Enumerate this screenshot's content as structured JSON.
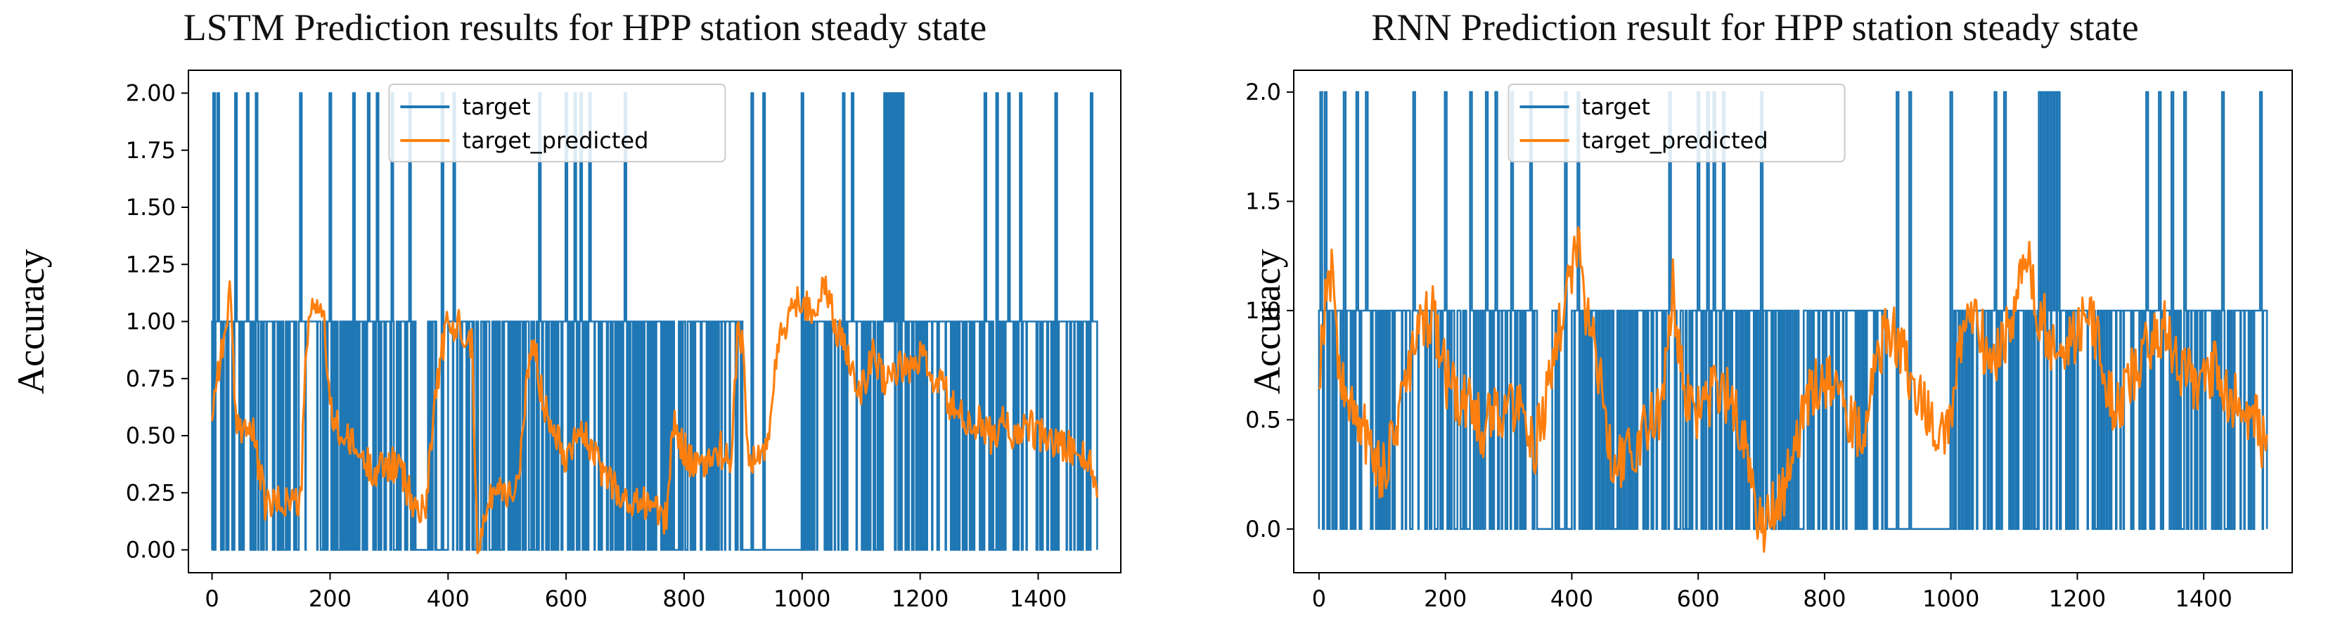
{
  "chart_data": [
    {
      "type": "line",
      "title": "LSTM Prediction results for HPP station steady state",
      "ylabel": "Accuracy",
      "xlabel": "",
      "xlim": [
        -40,
        1540
      ],
      "ylim": [
        -0.1,
        2.1
      ],
      "xticks": [
        0,
        200,
        400,
        600,
        800,
        1000,
        1200,
        1400
      ],
      "xtick_labels": [
        "0",
        "200",
        "400",
        "600",
        "800",
        "1000",
        "1200",
        "1400"
      ],
      "yticks": [
        0.0,
        0.25,
        0.5,
        0.75,
        1.0,
        1.25,
        1.5,
        1.75,
        2.0
      ],
      "ytick_labels": [
        "0.00",
        "0.25",
        "0.50",
        "0.75",
        "1.00",
        "1.25",
        "1.50",
        "1.75",
        "2.00"
      ],
      "grid": false,
      "legend": "top-center",
      "series": [
        {
          "name": "target",
          "color": "#1f77b4",
          "kind": "step",
          "segments": [
            {
              "x": [
                0,
                160
              ],
              "level": 1,
              "density": 0.75
            },
            {
              "x": [
                160,
                185
              ],
              "level": 1,
              "density": 0.85
            },
            {
              "x": [
                185,
                345
              ],
              "level": 1,
              "density": 0.6
            },
            {
              "x": [
                345,
                365
              ],
              "level": 0,
              "density": 0.3
            },
            {
              "x": [
                365,
                380
              ],
              "level": 1,
              "density": 0.7
            },
            {
              "x": [
                380,
                400
              ],
              "level": 0,
              "density": 0.2
            },
            {
              "x": [
                400,
                455
              ],
              "level": 1,
              "density": 0.65
            },
            {
              "x": [
                455,
                765
              ],
              "level": 1,
              "density": 0.6
            },
            {
              "x": [
                765,
                900
              ],
              "level": 1,
              "density": 0.7
            },
            {
              "x": [
                900,
                1005
              ],
              "level": 0,
              "density": 0.25
            },
            {
              "x": [
                1005,
                1500
              ],
              "level": 1,
              "density": 0.7
            }
          ],
          "spikes_to_2": [
            3,
            10,
            40,
            60,
            75,
            150,
            200,
            240,
            265,
            280,
            305,
            335,
            390,
            410,
            555,
            600,
            615,
            625,
            640,
            700,
            915,
            935,
            1000,
            1070,
            1085,
            1140,
            1145,
            1150,
            1155,
            1160,
            1165,
            1170,
            1310,
            1330,
            1350,
            1370,
            1430,
            1490
          ],
          "gaps_to_0": [
            145,
            185,
            215,
            350,
            385,
            445,
            900,
            1125,
            1135,
            1230
          ]
        },
        {
          "name": "target_predicted",
          "color": "#ff7f0e",
          "kind": "line",
          "x": [
            0,
            10,
            20,
            30,
            40,
            55,
            70,
            90,
            110,
            130,
            150,
            160,
            170,
            180,
            190,
            200,
            220,
            240,
            260,
            280,
            300,
            320,
            340,
            350,
            360,
            375,
            385,
            395,
            400,
            410,
            420,
            430,
            440,
            450,
            460,
            480,
            500,
            520,
            540,
            550,
            560,
            580,
            600,
            620,
            640,
            660,
            680,
            700,
            720,
            740,
            760,
            770,
            780,
            800,
            820,
            840,
            860,
            880,
            890,
            900,
            910,
            920,
            940,
            960,
            980,
            1000,
            1020,
            1040,
            1060,
            1080,
            1100,
            1120,
            1140,
            1160,
            1180,
            1200,
            1220,
            1240,
            1260,
            1280,
            1300,
            1320,
            1340,
            1360,
            1380,
            1400,
            1420,
            1440,
            1460,
            1480,
            1500
          ],
          "y": [
            0.6,
            0.8,
            0.9,
            1.15,
            0.55,
            0.55,
            0.5,
            0.2,
            0.2,
            0.22,
            0.2,
            0.9,
            1.05,
            1.1,
            1.0,
            0.6,
            0.5,
            0.45,
            0.38,
            0.35,
            0.38,
            0.35,
            0.2,
            0.18,
            0.15,
            0.6,
            0.8,
            0.95,
            0.98,
            0.95,
            1.0,
            0.95,
            0.9,
            0.05,
            0.1,
            0.3,
            0.25,
            0.3,
            0.9,
            0.85,
            0.65,
            0.55,
            0.4,
            0.55,
            0.45,
            0.35,
            0.3,
            0.2,
            0.2,
            0.22,
            0.15,
            0.12,
            0.55,
            0.45,
            0.35,
            0.38,
            0.45,
            0.35,
            0.95,
            0.9,
            0.35,
            0.4,
            0.45,
            0.9,
            1.05,
            1.1,
            1.05,
            1.15,
            0.95,
            0.85,
            0.7,
            0.85,
            0.75,
            0.8,
            0.78,
            0.85,
            0.75,
            0.7,
            0.6,
            0.55,
            0.55,
            0.5,
            0.55,
            0.5,
            0.55,
            0.5,
            0.48,
            0.45,
            0.45,
            0.4,
            0.3
          ],
          "noise": 0.08
        }
      ]
    },
    {
      "type": "line",
      "title": "RNN Prediction result for HPP station steady state",
      "ylabel": "Accuracy",
      "xlabel": "",
      "xlim": [
        -40,
        1540
      ],
      "ylim": [
        -0.2,
        2.1
      ],
      "xticks": [
        0,
        200,
        400,
        600,
        800,
        1000,
        1200,
        1400
      ],
      "xtick_labels": [
        "0",
        "200",
        "400",
        "600",
        "800",
        "1000",
        "1200",
        "1400"
      ],
      "yticks": [
        0.0,
        0.5,
        1.0,
        1.5,
        2.0
      ],
      "ytick_labels": [
        "0.0",
        "0.5",
        "1.0",
        "1.5",
        "2.0"
      ],
      "grid": false,
      "legend": "top-center",
      "series": [
        {
          "name": "target",
          "color": "#1f77b4",
          "kind": "step",
          "segments": [
            {
              "x": [
                0,
                160
              ],
              "level": 1,
              "density": 0.75
            },
            {
              "x": [
                160,
                185
              ],
              "level": 1,
              "density": 0.85
            },
            {
              "x": [
                185,
                345
              ],
              "level": 1,
              "density": 0.6
            },
            {
              "x": [
                345,
                365
              ],
              "level": 0,
              "density": 0.3
            },
            {
              "x": [
                365,
                380
              ],
              "level": 1,
              "density": 0.7
            },
            {
              "x": [
                380,
                400
              ],
              "level": 0,
              "density": 0.2
            },
            {
              "x": [
                400,
                455
              ],
              "level": 1,
              "density": 0.65
            },
            {
              "x": [
                455,
                765
              ],
              "level": 1,
              "density": 0.6
            },
            {
              "x": [
                765,
                900
              ],
              "level": 1,
              "density": 0.7
            },
            {
              "x": [
                900,
                1005
              ],
              "level": 0,
              "density": 0.25
            },
            {
              "x": [
                1005,
                1500
              ],
              "level": 1,
              "density": 0.7
            }
          ],
          "spikes_to_2": [
            3,
            10,
            40,
            60,
            75,
            150,
            200,
            240,
            265,
            280,
            305,
            335,
            390,
            410,
            555,
            600,
            615,
            625,
            640,
            700,
            915,
            935,
            1000,
            1070,
            1085,
            1140,
            1145,
            1150,
            1155,
            1160,
            1165,
            1170,
            1310,
            1330,
            1350,
            1370,
            1430,
            1490
          ],
          "gaps_to_0": [
            145,
            185,
            215,
            350,
            385,
            445,
            900,
            1125,
            1135,
            1230
          ]
        },
        {
          "name": "target_predicted",
          "color": "#ff7f0e",
          "kind": "line",
          "x": [
            0,
            10,
            20,
            30,
            40,
            60,
            80,
            100,
            120,
            140,
            160,
            180,
            200,
            220,
            240,
            260,
            280,
            300,
            320,
            340,
            360,
            380,
            400,
            410,
            420,
            440,
            460,
            480,
            500,
            520,
            540,
            560,
            580,
            600,
            620,
            640,
            660,
            680,
            700,
            720,
            740,
            760,
            780,
            800,
            820,
            840,
            860,
            880,
            900,
            920,
            940,
            960,
            980,
            1000,
            1020,
            1040,
            1060,
            1080,
            1100,
            1120,
            1140,
            1160,
            1180,
            1200,
            1220,
            1240,
            1260,
            1280,
            1300,
            1320,
            1340,
            1360,
            1380,
            1400,
            1420,
            1440,
            1460,
            1480,
            1500
          ],
          "y": [
            0.7,
            1.05,
            1.2,
            0.8,
            0.6,
            0.5,
            0.4,
            0.25,
            0.45,
            0.7,
            0.9,
            1.0,
            0.7,
            0.6,
            0.55,
            0.45,
            0.55,
            0.55,
            0.6,
            0.35,
            0.6,
            0.9,
            1.2,
            1.3,
            1.0,
            0.8,
            0.35,
            0.3,
            0.35,
            0.5,
            0.55,
            1.1,
            0.6,
            0.55,
            0.6,
            0.65,
            0.5,
            0.3,
            0.0,
            0.1,
            0.2,
            0.45,
            0.65,
            0.7,
            0.6,
            0.5,
            0.4,
            0.8,
            0.9,
            0.85,
            0.65,
            0.55,
            0.4,
            0.55,
            0.95,
            1.0,
            0.75,
            0.85,
            1.0,
            1.25,
            1.0,
            0.85,
            0.8,
            0.9,
            1.05,
            0.7,
            0.55,
            0.65,
            0.8,
            0.85,
            0.95,
            0.75,
            0.7,
            0.65,
            0.75,
            0.6,
            0.55,
            0.5,
            0.35
          ],
          "noise": 0.14
        }
      ]
    }
  ]
}
